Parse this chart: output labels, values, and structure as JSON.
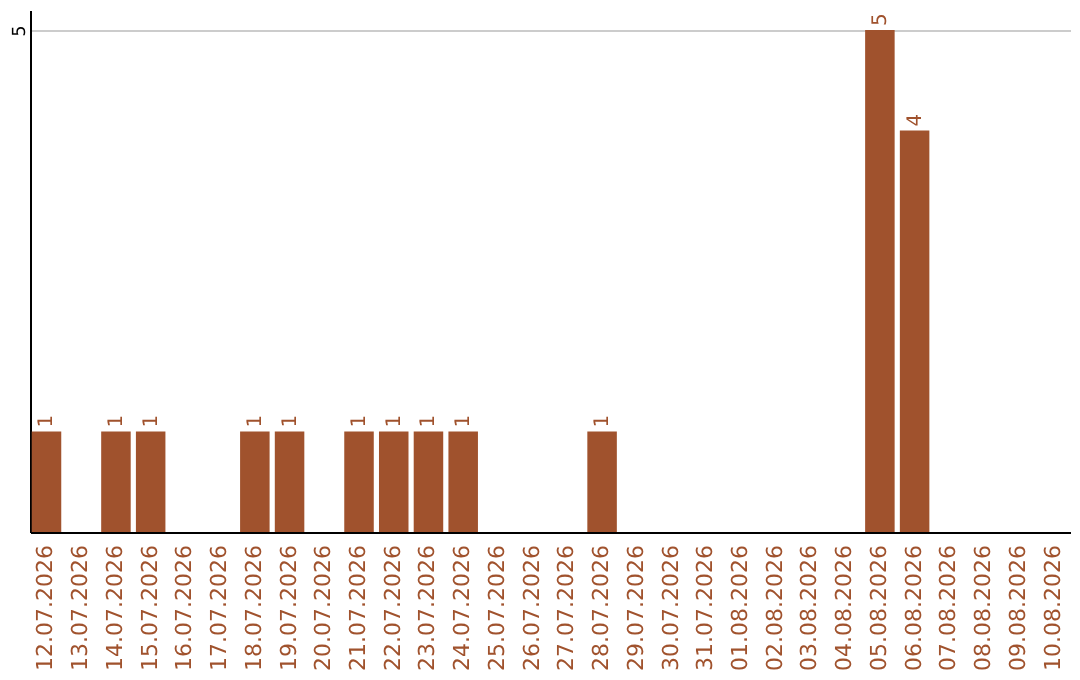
{
  "chart_data": {
    "type": "bar",
    "categories": [
      "12.07.2026",
      "13.07.2026",
      "14.07.2026",
      "15.07.2026",
      "16.07.2026",
      "17.07.2026",
      "18.07.2026",
      "19.07.2026",
      "20.07.2026",
      "21.07.2026",
      "22.07.2026",
      "23.07.2026",
      "24.07.2026",
      "25.07.2026",
      "26.07.2026",
      "27.07.2026",
      "28.07.2026",
      "29.07.2026",
      "30.07.2026",
      "31.07.2026",
      "01.08.2026",
      "02.08.2026",
      "03.08.2026",
      "04.08.2026",
      "05.08.2026",
      "06.08.2026",
      "07.08.2026",
      "08.08.2026",
      "09.08.2026",
      "10.08.2026"
    ],
    "values": [
      1,
      0,
      1,
      1,
      0,
      0,
      1,
      1,
      0,
      1,
      1,
      1,
      1,
      0,
      0,
      0,
      1,
      0,
      0,
      0,
      0,
      0,
      0,
      0,
      5,
      4,
      0,
      0,
      0,
      0
    ],
    "value_labels": [
      "1",
      null,
      "1",
      "1",
      null,
      null,
      "1",
      "1",
      null,
      "1",
      "1",
      "1",
      "1",
      null,
      null,
      null,
      "1",
      null,
      null,
      null,
      null,
      null,
      null,
      null,
      "5",
      "4",
      null,
      null,
      null,
      null
    ],
    "color": "#a0522d",
    "ylim": [
      0,
      5.2
    ],
    "yticks": [
      5
    ],
    "grid": "y"
  }
}
